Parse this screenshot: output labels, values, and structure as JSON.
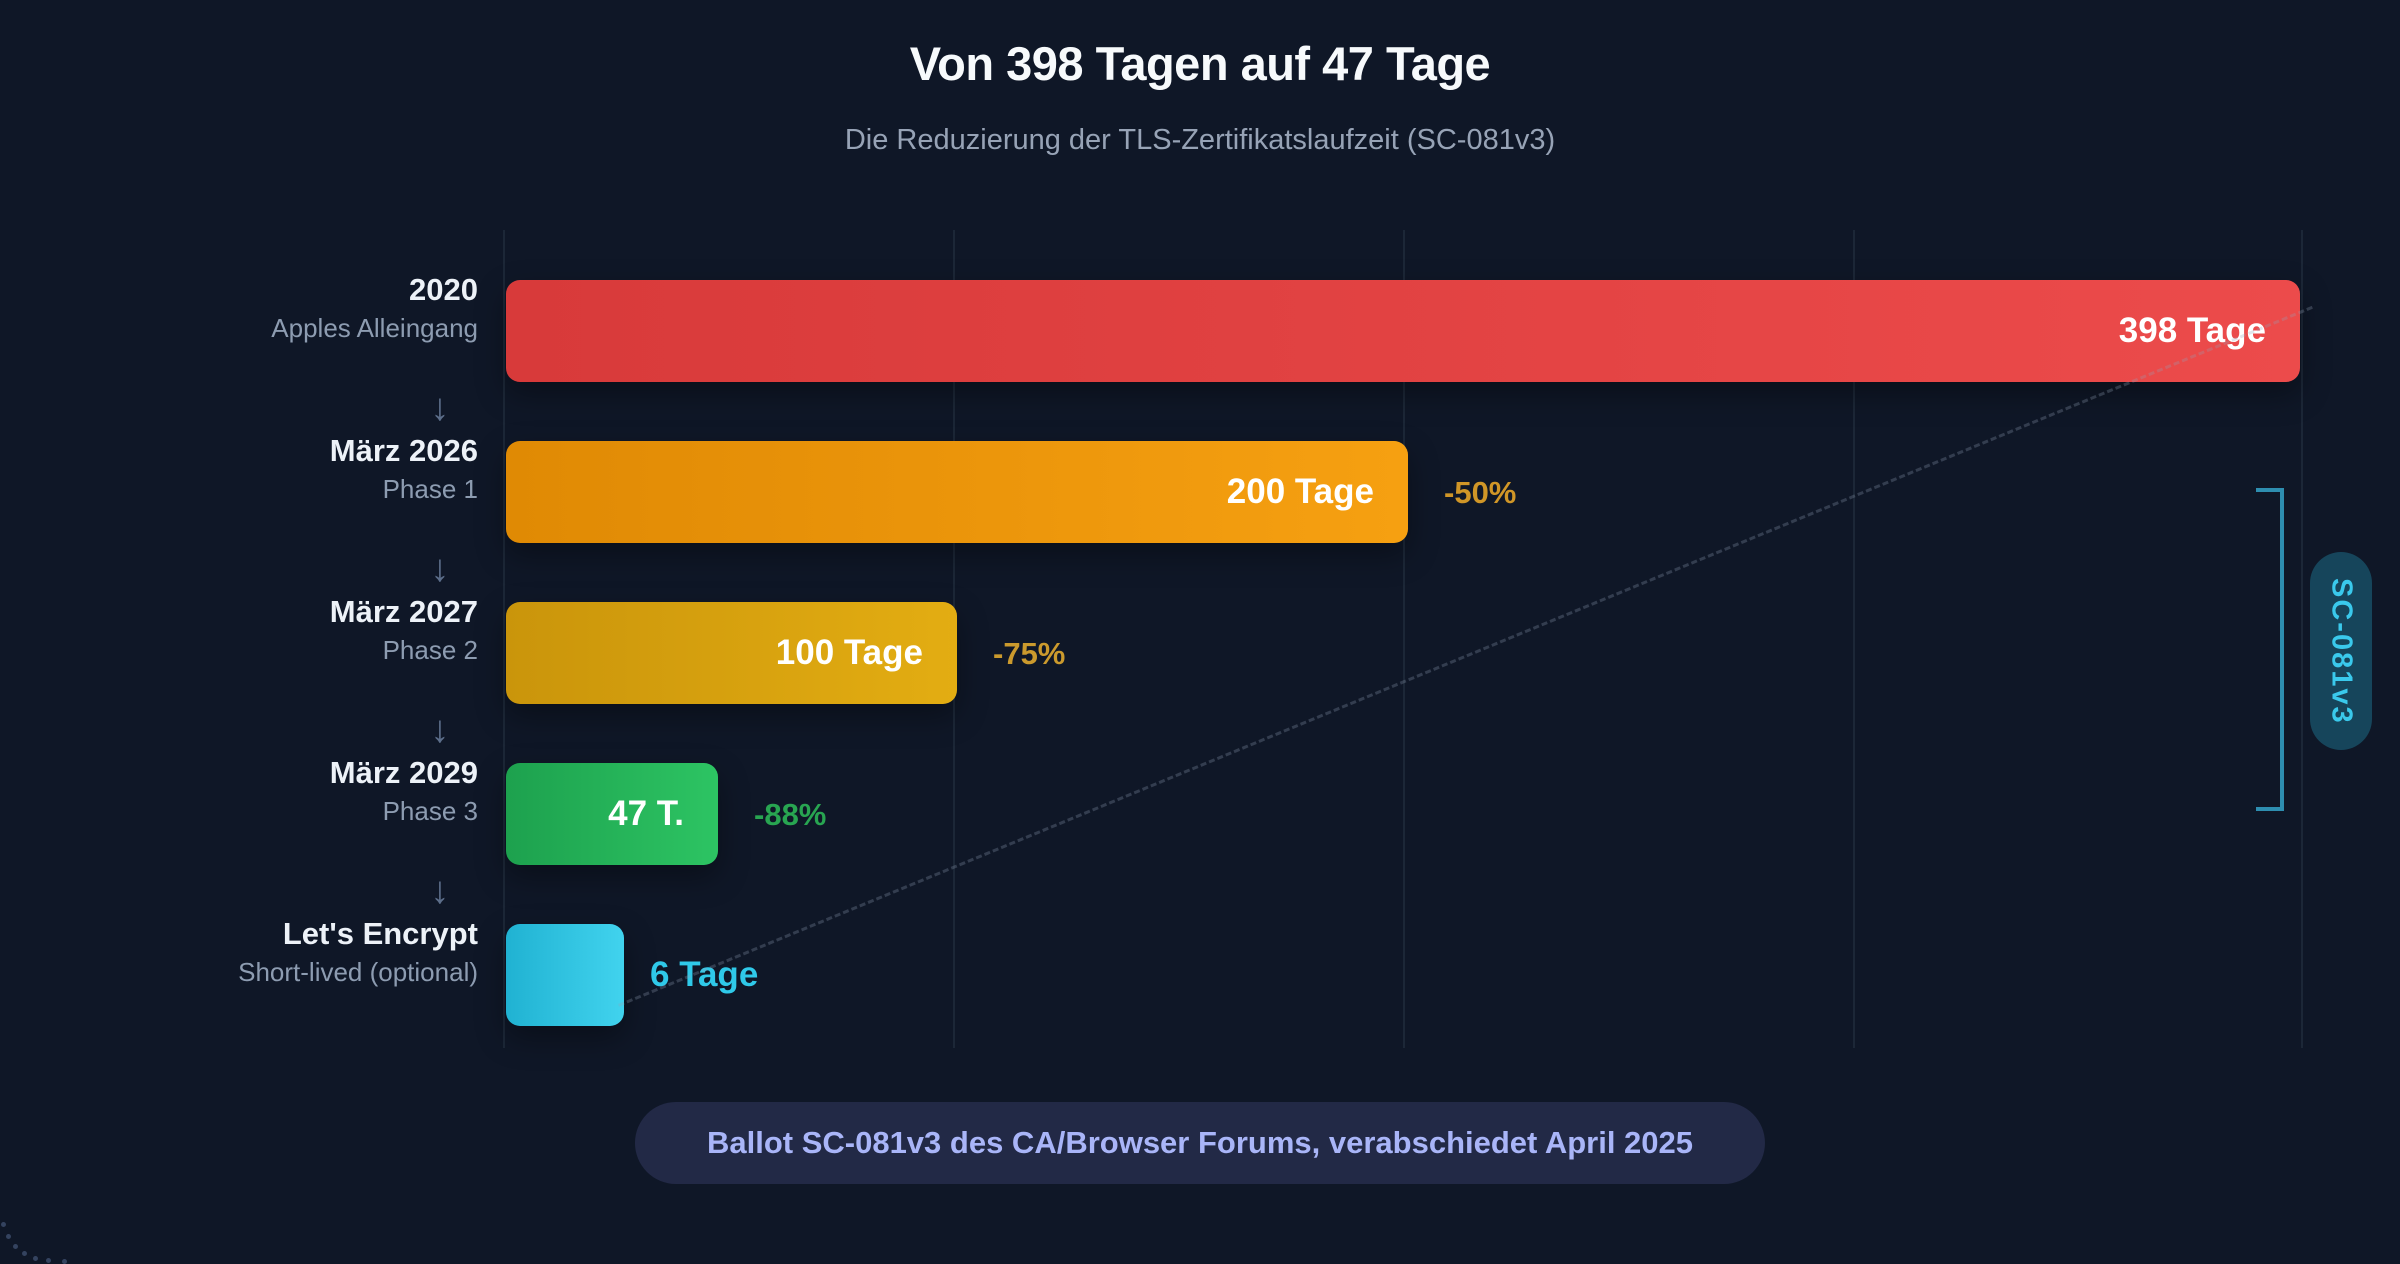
{
  "title": "Von 398 Tagen auf 47 Tage",
  "subtitle": "Die Reduzierung der TLS-Zertifikatslaufzeit (SC-081v3)",
  "footer": "Ballot SC-081v3 des CA/Browser Forums, verabschiedet April 2025",
  "side_label": "SC-081v3",
  "arrow_glyph": "↓",
  "colors": {
    "background": "#0f1727",
    "gridline": "#1c2737",
    "title_text": "#f7fafc",
    "subtitle_text": "#97a3b6",
    "year_text": "#edf2f8",
    "sublabel_text": "#8d9cb1",
    "arrow": "#5c6e8a",
    "bracket": "#2e8eb0",
    "side_pill_bg": "#16455b",
    "side_pill_text": "#3ac9ec",
    "footer_bg": "#222946",
    "footer_text": "#a9b5f8"
  },
  "chart_data": {
    "type": "bar",
    "orientation": "horizontal",
    "title": "Von 398 Tagen auf 47 Tage",
    "subtitle": "Die Reduzierung der TLS-Zertifikatslaufzeit (SC-081v3)",
    "unit": "Tage",
    "xlim": [
      0,
      398
    ],
    "gridline_interval_days": 100,
    "legend": "none",
    "categories": [
      "2020",
      "März 2026",
      "März 2027",
      "März 2029",
      "Let's Encrypt"
    ],
    "values": [
      398,
      200,
      100,
      47,
      6
    ],
    "max_days": 398,
    "rows": [
      {
        "year": "2020",
        "label": "Apples Alleingang",
        "days": 398,
        "value_label": "398 Tage",
        "value_inside": true,
        "value_color": "#ffffff",
        "percent": null,
        "percent_color": null,
        "bar_from": "#d83a3a",
        "bar_to": "#ec4b4b"
      },
      {
        "year": "März 2026",
        "label": "Phase 1",
        "days": 200,
        "value_label": "200 Tage",
        "value_inside": true,
        "value_color": "#ffffff",
        "percent": "-50%",
        "percent_color": "#d09627",
        "bar_from": "#e08a04",
        "bar_to": "#f6a011"
      },
      {
        "year": "März 2027",
        "label": "Phase 2",
        "days": 100,
        "value_label": "100 Tage",
        "value_inside": true,
        "value_color": "#ffffff",
        "percent": "-75%",
        "percent_color": "#cb9a2d",
        "bar_from": "#ca950b",
        "bar_to": "#e3ad12"
      },
      {
        "year": "März 2029",
        "label": "Phase 3",
        "days": 47,
        "value_label": "47 T.",
        "value_inside": true,
        "value_color": "#ffffff",
        "percent": "-88%",
        "percent_color": "#28a551",
        "bar_from": "#1da14e",
        "bar_to": "#2dc463"
      },
      {
        "year": "Let's Encrypt",
        "label": "Short-lived (optional)",
        "days": 6,
        "value_label": "6 Tage",
        "value_inside": false,
        "value_color": "#2fc9e9",
        "percent": null,
        "percent_color": null,
        "bar_from": "#20b2d2",
        "bar_to": "#41d3ee"
      }
    ]
  }
}
